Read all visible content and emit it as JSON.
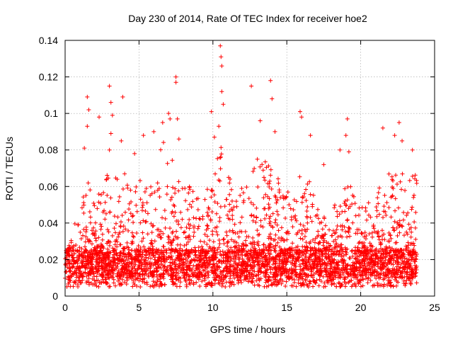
{
  "chart_data": {
    "type": "scatter",
    "title": "Day 230 of 2014, Rate Of TEC Index for receiver hoe2",
    "xlabel": "GPS time / hours",
    "ylabel": "ROTI / TECUs",
    "xlim": [
      0,
      25
    ],
    "ylim": [
      0,
      0.14
    ],
    "xticks": [
      "0",
      "5",
      "10",
      "15",
      "20",
      "25"
    ],
    "yticks": [
      "0",
      "0.02",
      "0.04",
      "0.06",
      "0.08",
      "0.1",
      "0.12",
      "0.14"
    ],
    "grid": true,
    "marker": "plus",
    "color": "#ff0000",
    "x_range_of_data": [
      0,
      23.8
    ],
    "series": [
      {
        "envelope": {
          "hours": [
            0.0,
            0.5,
            1.0,
            1.5,
            2.0,
            2.5,
            3.0,
            3.5,
            4.0,
            4.5,
            5.0,
            5.5,
            6.0,
            6.5,
            7.0,
            7.5,
            8.0,
            8.5,
            9.0,
            9.5,
            10.0,
            10.5,
            11.0,
            11.5,
            12.0,
            12.5,
            13.0,
            13.5,
            14.0,
            14.5,
            15.0,
            15.5,
            16.0,
            16.5,
            17.0,
            17.5,
            18.0,
            18.5,
            19.0,
            19.5,
            20.0,
            20.5,
            21.0,
            21.5,
            22.0,
            22.5,
            23.0,
            23.5
          ],
          "typical_max": [
            0.022,
            0.035,
            0.05,
            0.065,
            0.06,
            0.055,
            0.075,
            0.065,
            0.07,
            0.06,
            0.065,
            0.06,
            0.07,
            0.085,
            0.09,
            0.08,
            0.06,
            0.06,
            0.055,
            0.055,
            0.07,
            0.085,
            0.07,
            0.06,
            0.06,
            0.065,
            0.08,
            0.075,
            0.07,
            0.065,
            0.06,
            0.055,
            0.07,
            0.065,
            0.05,
            0.045,
            0.045,
            0.055,
            0.06,
            0.06,
            0.05,
            0.055,
            0.06,
            0.06,
            0.07,
            0.075,
            0.07,
            0.07
          ]
        },
        "outliers": [
          {
            "x": 1.3,
            "y": 0.081
          },
          {
            "x": 1.5,
            "y": 0.109
          },
          {
            "x": 1.5,
            "y": 0.093
          },
          {
            "x": 1.6,
            "y": 0.102
          },
          {
            "x": 2.3,
            "y": 0.098
          },
          {
            "x": 3.0,
            "y": 0.115
          },
          {
            "x": 3.1,
            "y": 0.106
          },
          {
            "x": 3.2,
            "y": 0.099
          },
          {
            "x": 3.1,
            "y": 0.089
          },
          {
            "x": 3.0,
            "y": 0.08
          },
          {
            "x": 3.9,
            "y": 0.109
          },
          {
            "x": 3.8,
            "y": 0.085
          },
          {
            "x": 4.7,
            "y": 0.078
          },
          {
            "x": 5.3,
            "y": 0.088
          },
          {
            "x": 6.0,
            "y": 0.09
          },
          {
            "x": 6.6,
            "y": 0.095
          },
          {
            "x": 7.0,
            "y": 0.1
          },
          {
            "x": 7.1,
            "y": 0.097
          },
          {
            "x": 7.5,
            "y": 0.12
          },
          {
            "x": 7.5,
            "y": 0.117
          },
          {
            "x": 7.6,
            "y": 0.097
          },
          {
            "x": 7.7,
            "y": 0.086
          },
          {
            "x": 9.9,
            "y": 0.101
          },
          {
            "x": 10.1,
            "y": 0.087
          },
          {
            "x": 10.4,
            "y": 0.093
          },
          {
            "x": 10.5,
            "y": 0.137
          },
          {
            "x": 10.55,
            "y": 0.131
          },
          {
            "x": 10.6,
            "y": 0.126
          },
          {
            "x": 10.6,
            "y": 0.112
          },
          {
            "x": 10.7,
            "y": 0.105
          },
          {
            "x": 12.6,
            "y": 0.115
          },
          {
            "x": 13.2,
            "y": 0.096
          },
          {
            "x": 13.9,
            "y": 0.118
          },
          {
            "x": 14.0,
            "y": 0.108
          },
          {
            "x": 14.2,
            "y": 0.09
          },
          {
            "x": 15.9,
            "y": 0.101
          },
          {
            "x": 16.0,
            "y": 0.098
          },
          {
            "x": 16.6,
            "y": 0.088
          },
          {
            "x": 17.5,
            "y": 0.072
          },
          {
            "x": 18.6,
            "y": 0.08
          },
          {
            "x": 19.1,
            "y": 0.097
          },
          {
            "x": 19.0,
            "y": 0.088
          },
          {
            "x": 19.2,
            "y": 0.079
          },
          {
            "x": 21.5,
            "y": 0.092
          },
          {
            "x": 22.3,
            "y": 0.088
          },
          {
            "x": 22.6,
            "y": 0.095
          },
          {
            "x": 22.8,
            "y": 0.085
          },
          {
            "x": 23.5,
            "y": 0.08
          }
        ],
        "typical_min": 0.005,
        "dense_band": [
          0.01,
          0.025
        ]
      }
    ]
  }
}
